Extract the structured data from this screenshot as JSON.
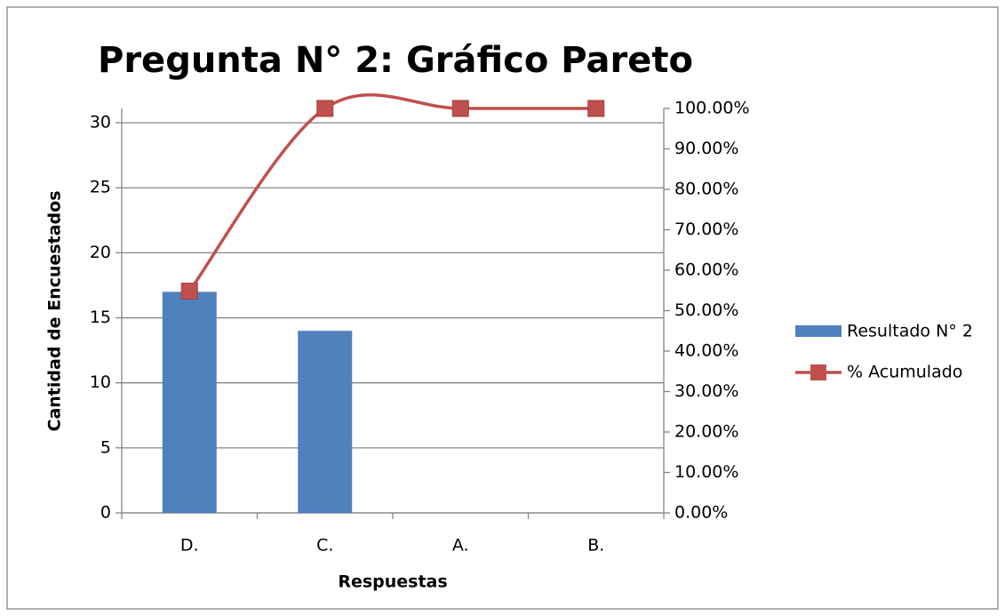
{
  "chart_data": {
    "type": "bar-line",
    "title": "Pregunta N° 2: Gráfico Pareto",
    "x_label": "Respuestas",
    "y_label": "Cantidad de Encuestados",
    "categories": [
      "D.",
      "C.",
      "A.",
      "B."
    ],
    "series": [
      {
        "name": "Resultado N° 2",
        "color": "#4f81bd",
        "values": [
          17,
          14,
          0,
          0
        ]
      },
      {
        "name": "% Acumulado",
        "color": "#c0504d",
        "axis": "y2",
        "values": [
          54.84,
          100,
          100,
          100
        ]
      }
    ],
    "ylim": [
      0,
      31.1
    ],
    "yticks": [
      0,
      5,
      10,
      15,
      20,
      25,
      30
    ],
    "y2lim": [
      0,
      100
    ],
    "y2ticks": [
      {
        "value": 0,
        "label": "0.00%"
      },
      {
        "value": 10,
        "label": "10.00%"
      },
      {
        "value": 20,
        "label": "20.00%"
      },
      {
        "value": 30,
        "label": "30.00%"
      },
      {
        "value": 40,
        "label": "40.00%"
      },
      {
        "value": 50,
        "label": "50.00%"
      },
      {
        "value": 60,
        "label": "60.00%"
      },
      {
        "value": 70,
        "label": "70.00%"
      },
      {
        "value": 80,
        "label": "80.00%"
      },
      {
        "value": 90,
        "label": "90.00%"
      },
      {
        "value": 100,
        "label": "100.00%"
      }
    ],
    "grid": true,
    "legend": "right"
  }
}
